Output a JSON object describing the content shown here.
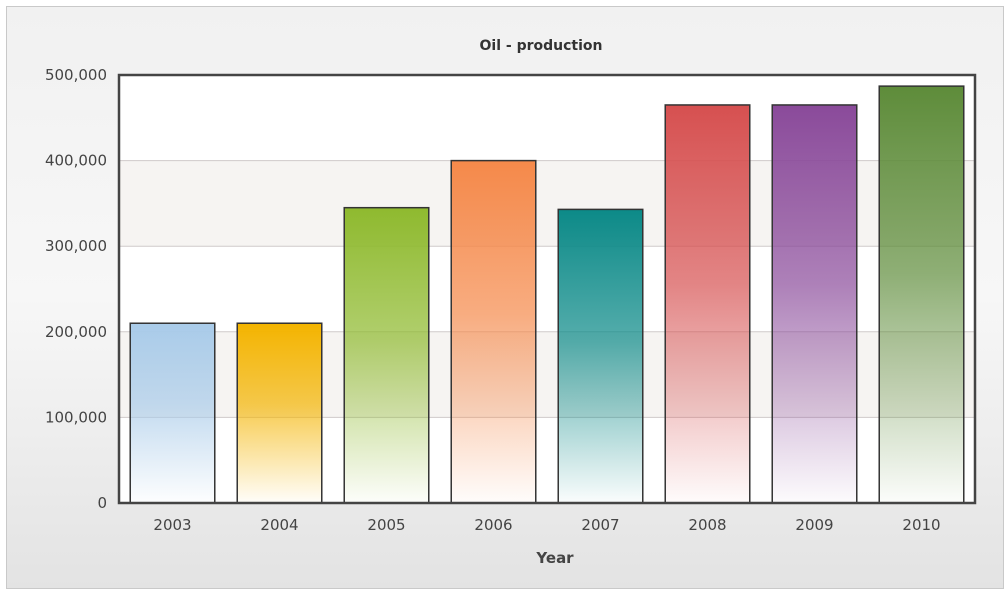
{
  "chart_data": {
    "type": "bar",
    "title": "Oil - production",
    "xlabel": "Year",
    "ylabel": "",
    "categories": [
      "2003",
      "2004",
      "2005",
      "2006",
      "2007",
      "2008",
      "2009",
      "2010"
    ],
    "values": [
      210000,
      210000,
      345000,
      400000,
      343000,
      465000,
      465000,
      487000
    ],
    "ylim": [
      0,
      500000
    ],
    "yticks": [
      "0",
      "100,000",
      "200,000",
      "300,000",
      "400,000",
      "500,000"
    ],
    "grid": true,
    "legend": "none",
    "bar_colors": [
      "#a9cbe9",
      "#f4b400",
      "#8fba2f",
      "#f5894a",
      "#0c8a88",
      "#d65050",
      "#8a4a9a",
      "#5e8c3a"
    ]
  }
}
